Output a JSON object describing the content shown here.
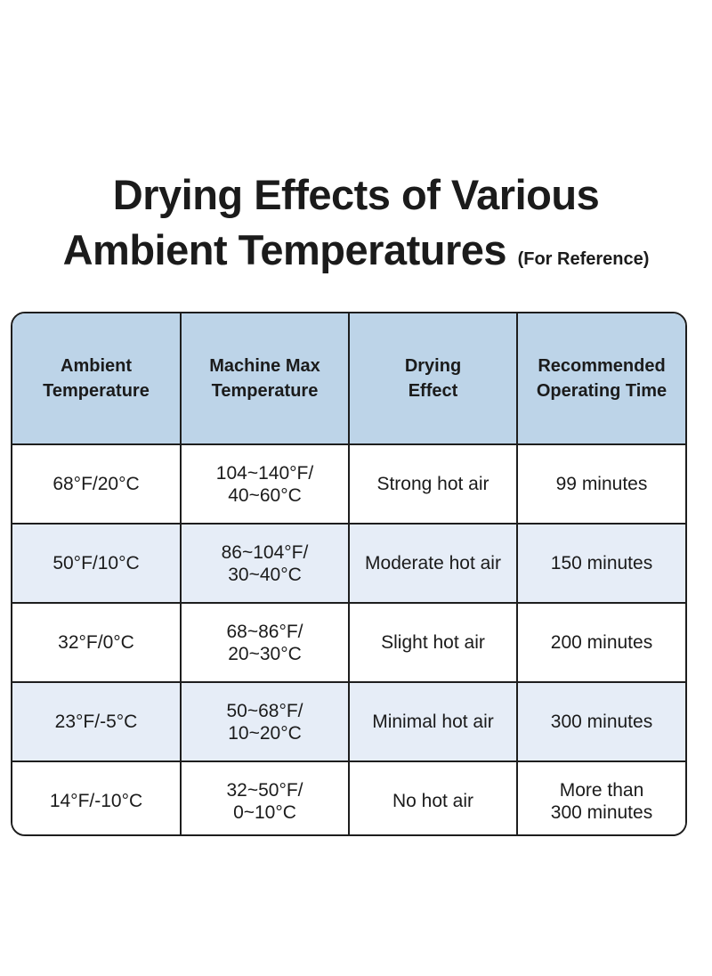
{
  "title": {
    "line1": "Drying Effects of Various",
    "line2": "Ambient Temperatures",
    "note": "(For Reference)"
  },
  "table": {
    "headers": [
      [
        "Ambient",
        "Temperature"
      ],
      [
        "Machine Max",
        "Temperature"
      ],
      [
        "Drying",
        "Effect"
      ],
      [
        "Recommended",
        "Operating Time"
      ]
    ],
    "rows": [
      {
        "ambient": "68°F/20°C",
        "machine_max": [
          "104~140°F/",
          "40~60°C"
        ],
        "effect": "Strong hot air",
        "time": [
          "99 minutes"
        ]
      },
      {
        "ambient": "50°F/10°C",
        "machine_max": [
          "86~104°F/",
          "30~40°C"
        ],
        "effect": "Moderate hot air",
        "time": [
          "150 minutes"
        ]
      },
      {
        "ambient": "32°F/0°C",
        "machine_max": [
          "68~86°F/",
          "20~30°C"
        ],
        "effect": "Slight hot air",
        "time": [
          "200 minutes"
        ]
      },
      {
        "ambient": "23°F/-5°C",
        "machine_max": [
          "50~68°F/",
          "10~20°C"
        ],
        "effect": "Minimal hot air",
        "time": [
          "300 minutes"
        ]
      },
      {
        "ambient": "14°F/-10°C",
        "machine_max": [
          "32~50°F/",
          "0~10°C"
        ],
        "effect": "No hot air",
        "time": [
          "More than",
          "300 minutes"
        ]
      }
    ]
  },
  "colors": {
    "header_bg": "#bdd4e8",
    "shaded_row_bg": "#e6edf7",
    "border": "#1e1e1e",
    "text": "#1b1b1b"
  }
}
